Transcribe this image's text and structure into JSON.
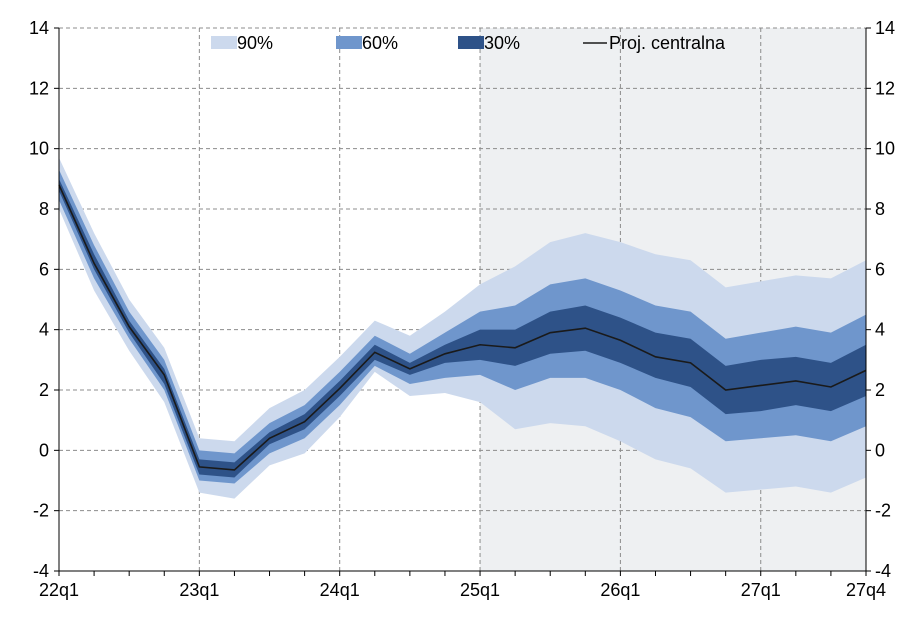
{
  "chart_data": {
    "type": "area",
    "title": "",
    "xlabel": "",
    "ylabel": "",
    "ylim": [
      -4,
      14
    ],
    "y_ticks": [
      -4,
      -2,
      0,
      2,
      4,
      6,
      8,
      10,
      12,
      14
    ],
    "y_tick_labels": [
      "-4",
      "-2",
      "0",
      "2",
      "4",
      "6",
      "8",
      "10",
      "12",
      "14"
    ],
    "x": [
      "22q1",
      "22q2",
      "22q3",
      "22q4",
      "23q1",
      "23q2",
      "23q3",
      "23q4",
      "24q1",
      "24q2",
      "24q3",
      "24q4",
      "25q1",
      "25q2",
      "25q3",
      "25q4",
      "26q1",
      "26q2",
      "26q3",
      "26q4",
      "27q1",
      "27q2",
      "27q3",
      "27q4"
    ],
    "x_tick_labels": [
      "22q1",
      "23q1",
      "24q1",
      "25q1",
      "26q1",
      "27q1",
      "27q4"
    ],
    "grid": true,
    "projection_shading_start": "25q1",
    "legend_position": "top",
    "colors": {
      "band90": "#ccd9ed",
      "band60": "#6f96cc",
      "band30": "#2e5288",
      "central": "#1a1a1a",
      "projection_bg": "#eef0f2",
      "grid": "#8c8c8c"
    },
    "series": [
      {
        "name": "90%",
        "lower": [
          8.0,
          5.3,
          3.3,
          1.6,
          -1.4,
          -1.6,
          -0.5,
          -0.1,
          1.1,
          2.6,
          1.8,
          1.9,
          1.6,
          0.7,
          0.9,
          0.8,
          0.3,
          -0.3,
          -0.6,
          -1.4,
          -1.3,
          -1.2,
          -1.4,
          -0.9
        ],
        "upper": [
          9.7,
          7.2,
          5.0,
          3.4,
          0.4,
          0.3,
          1.4,
          2.0,
          3.1,
          4.3,
          3.8,
          4.6,
          5.5,
          6.1,
          6.9,
          7.2,
          6.9,
          6.5,
          6.3,
          5.4,
          5.6,
          5.8,
          5.7,
          6.3
        ]
      },
      {
        "name": "60%",
        "lower": [
          8.3,
          5.7,
          3.7,
          2.0,
          -1.0,
          -1.1,
          -0.1,
          0.4,
          1.5,
          2.8,
          2.2,
          2.4,
          2.5,
          2.0,
          2.4,
          2.4,
          2.0,
          1.4,
          1.1,
          0.3,
          0.4,
          0.5,
          0.3,
          0.8
        ],
        "upper": [
          9.3,
          6.8,
          4.6,
          3.0,
          0.0,
          -0.1,
          0.9,
          1.5,
          2.6,
          3.8,
          3.2,
          3.9,
          4.6,
          4.8,
          5.5,
          5.7,
          5.3,
          4.8,
          4.6,
          3.7,
          3.9,
          4.1,
          3.9,
          4.5
        ]
      },
      {
        "name": "30%",
        "lower": [
          8.6,
          6.0,
          3.9,
          2.2,
          -0.8,
          -0.9,
          0.2,
          0.7,
          1.8,
          3.0,
          2.5,
          2.9,
          3.0,
          2.8,
          3.2,
          3.3,
          2.9,
          2.4,
          2.1,
          1.2,
          1.3,
          1.5,
          1.3,
          1.8
        ],
        "upper": [
          9.0,
          6.5,
          4.3,
          2.7,
          -0.3,
          -0.4,
          0.6,
          1.2,
          2.3,
          3.5,
          2.9,
          3.5,
          4.0,
          4.0,
          4.6,
          4.8,
          4.4,
          3.9,
          3.7,
          2.8,
          3.0,
          3.1,
          2.9,
          3.5
        ]
      },
      {
        "name": "Proj. centralna",
        "values": [
          8.8,
          6.2,
          4.1,
          2.5,
          -0.55,
          -0.65,
          0.4,
          0.95,
          2.05,
          3.25,
          2.7,
          3.2,
          3.5,
          3.4,
          3.9,
          4.05,
          3.65,
          3.1,
          2.9,
          2.0,
          2.15,
          2.3,
          2.1,
          2.65
        ]
      }
    ]
  }
}
